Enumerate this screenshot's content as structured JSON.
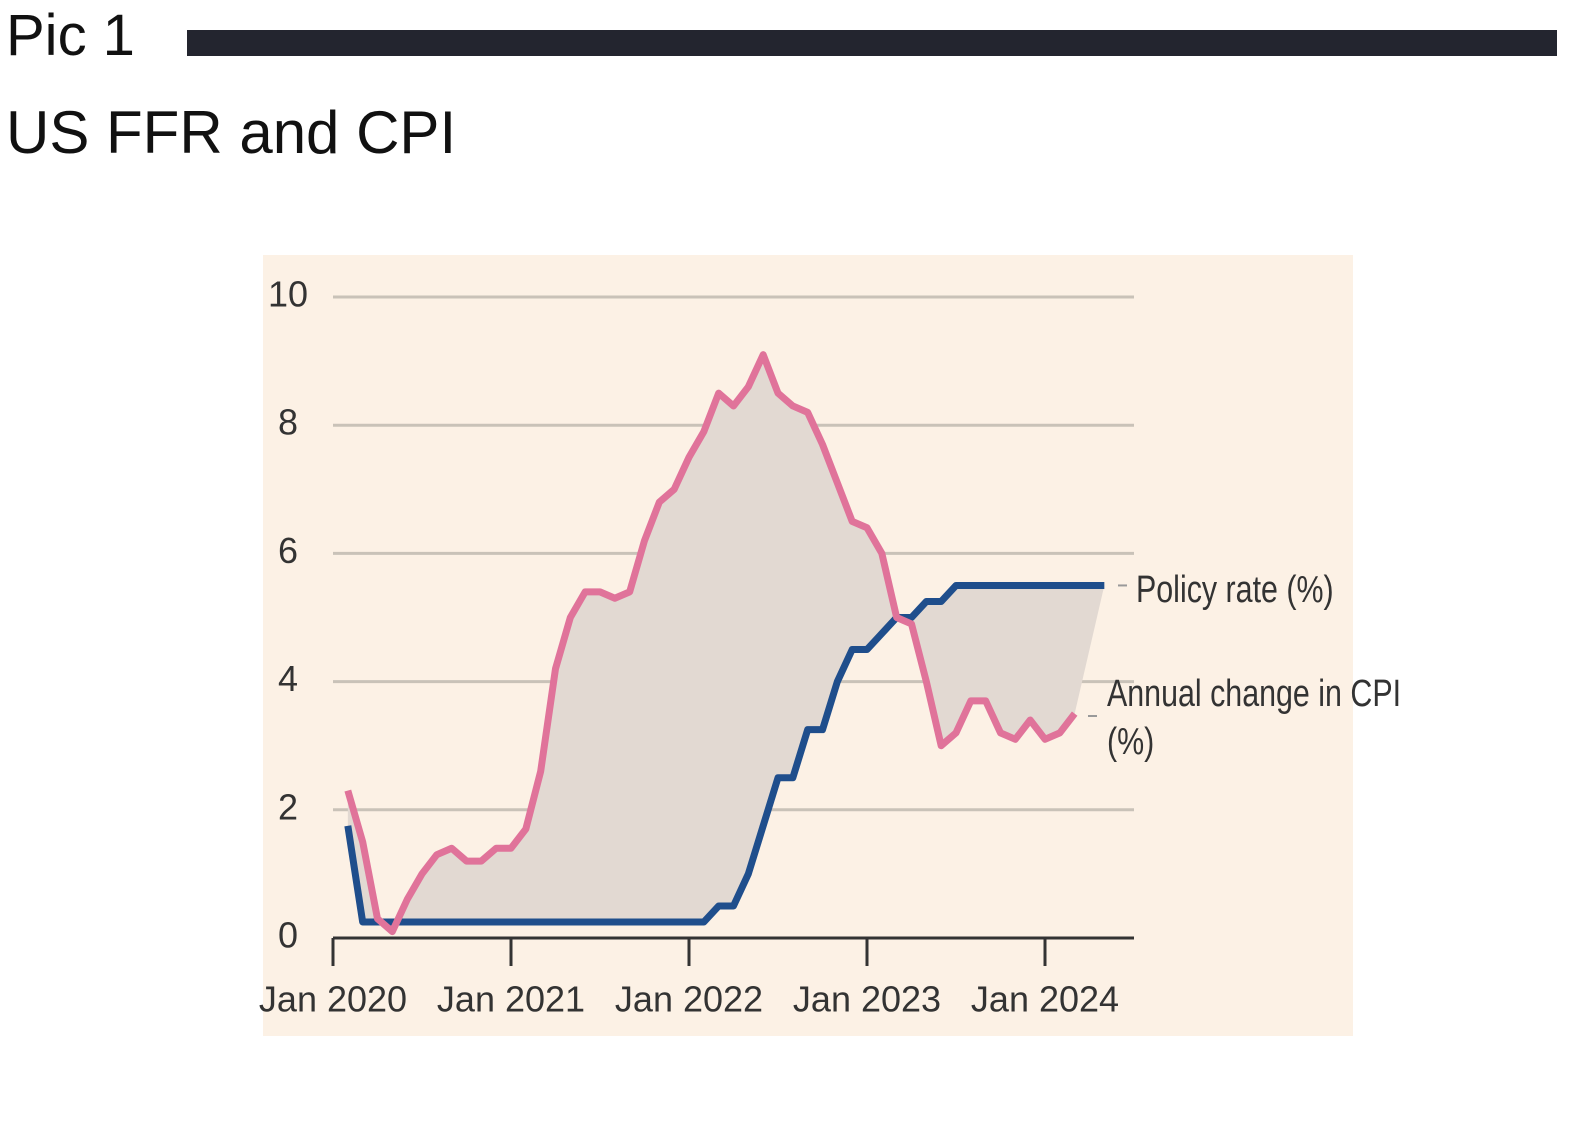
{
  "header": {
    "label": "Pic 1",
    "title": "US FFR and CPI"
  },
  "chart_data": {
    "type": "line",
    "x": [
      "2020-02",
      "2020-03",
      "2020-04",
      "2020-05",
      "2020-06",
      "2020-07",
      "2020-08",
      "2020-09",
      "2020-10",
      "2020-11",
      "2020-12",
      "2021-01",
      "2021-02",
      "2021-03",
      "2021-04",
      "2021-05",
      "2021-06",
      "2021-07",
      "2021-08",
      "2021-09",
      "2021-10",
      "2021-11",
      "2021-12",
      "2022-01",
      "2022-02",
      "2022-03",
      "2022-04",
      "2022-05",
      "2022-06",
      "2022-07",
      "2022-08",
      "2022-09",
      "2022-10",
      "2022-11",
      "2022-12",
      "2023-01",
      "2023-02",
      "2023-03",
      "2023-04",
      "2023-05",
      "2023-06",
      "2023-07",
      "2023-08",
      "2023-09",
      "2023-10",
      "2023-11",
      "2023-12",
      "2024-01",
      "2024-02",
      "2024-03",
      "2024-04",
      "2024-05"
    ],
    "series": [
      {
        "name": "Policy rate (%)",
        "color": "#1f4e8c",
        "values": [
          1.75,
          0.25,
          0.25,
          0.25,
          0.25,
          0.25,
          0.25,
          0.25,
          0.25,
          0.25,
          0.25,
          0.25,
          0.25,
          0.25,
          0.25,
          0.25,
          0.25,
          0.25,
          0.25,
          0.25,
          0.25,
          0.25,
          0.25,
          0.25,
          0.25,
          0.5,
          0.5,
          1.0,
          1.75,
          2.5,
          2.5,
          3.25,
          3.25,
          4.0,
          4.5,
          4.5,
          4.75,
          5.0,
          5.0,
          5.25,
          5.25,
          5.5,
          5.5,
          5.5,
          5.5,
          5.5,
          5.5,
          5.5,
          5.5,
          5.5,
          5.5,
          5.5
        ]
      },
      {
        "name": "Annual change in CPI (%)",
        "color": "#e0739a",
        "values": [
          2.3,
          1.5,
          0.3,
          0.1,
          0.6,
          1.0,
          1.3,
          1.4,
          1.2,
          1.2,
          1.4,
          1.4,
          1.7,
          2.6,
          4.2,
          5.0,
          5.4,
          5.4,
          5.3,
          5.4,
          6.2,
          6.8,
          7.0,
          7.5,
          7.9,
          8.5,
          8.3,
          8.6,
          9.1,
          8.5,
          8.3,
          8.2,
          7.7,
          7.1,
          6.5,
          6.4,
          6.0,
          5.0,
          4.9,
          4.0,
          3.0,
          3.2,
          3.7,
          3.7,
          3.2,
          3.1,
          3.4,
          3.1,
          3.2,
          3.5,
          null,
          null
        ]
      }
    ],
    "xlim": [
      "2020-01",
      "2024-07"
    ],
    "xticks": [
      {
        "value": "2020-01",
        "label": "Jan 2020"
      },
      {
        "value": "2021-01",
        "label": "Jan 2021"
      },
      {
        "value": "2022-01",
        "label": "Jan 2022"
      },
      {
        "value": "2023-01",
        "label": "Jan 2023"
      },
      {
        "value": "2024-01",
        "label": "Jan 2024"
      }
    ],
    "ylim": [
      0,
      10
    ],
    "yticks": [
      0,
      2,
      4,
      6,
      8,
      10
    ],
    "grid": true,
    "shade_between": true,
    "background": "#fcf1e5",
    "shade_color": "#e2d9d2"
  }
}
